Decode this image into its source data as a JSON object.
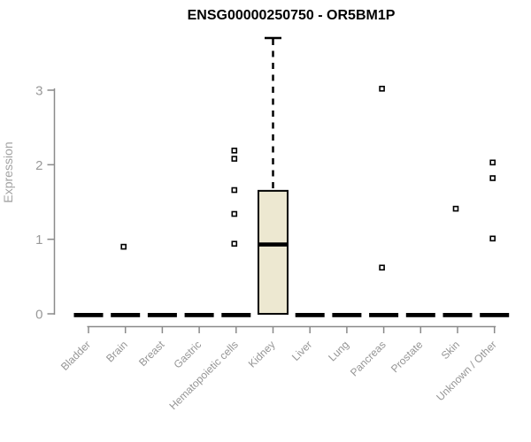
{
  "chart_data": {
    "type": "box",
    "title": "ENSG00000250750 - OR5BM1P",
    "ylabel": "Expression",
    "xlabel": "",
    "yticks": [
      0,
      1,
      2,
      3
    ],
    "ylim": [
      0,
      3.85
    ],
    "grid": false,
    "legend": "none",
    "categories": [
      "Bladder",
      "Brain",
      "Breast",
      "Gastric",
      "Hematopoietic cells",
      "Kidney",
      "Liver",
      "Lung",
      "Pancreas",
      "Prostate",
      "Skin",
      "Unknown / Other"
    ],
    "boxes": [
      {
        "category": "Bladder",
        "whisker_low": 0,
        "q1": 0,
        "median": 0,
        "q3": 0,
        "whisker_high": 0,
        "outliers": []
      },
      {
        "category": "Brain",
        "whisker_low": 0,
        "q1": 0,
        "median": 0,
        "q3": 0,
        "whisker_high": 0,
        "outliers": [
          0.9
        ]
      },
      {
        "category": "Breast",
        "whisker_low": 0,
        "q1": 0,
        "median": 0,
        "q3": 0,
        "whisker_high": 0,
        "outliers": []
      },
      {
        "category": "Gastric",
        "whisker_low": 0,
        "q1": 0,
        "median": 0,
        "q3": 0,
        "whisker_high": 0,
        "outliers": []
      },
      {
        "category": "Hematopoietic cells",
        "whisker_low": 0,
        "q1": 0,
        "median": 0,
        "q3": 0,
        "whisker_high": 0,
        "outliers": [
          0.94,
          1.34,
          1.66,
          2.08,
          2.19
        ]
      },
      {
        "category": "Kidney",
        "whisker_low": 0,
        "q1": 0,
        "median": 0.93,
        "q3": 1.65,
        "whisker_high": 3.7,
        "outliers": []
      },
      {
        "category": "Liver",
        "whisker_low": 0,
        "q1": 0,
        "median": 0,
        "q3": 0,
        "whisker_high": 0,
        "outliers": []
      },
      {
        "category": "Lung",
        "whisker_low": 0,
        "q1": 0,
        "median": 0,
        "q3": 0,
        "whisker_high": 0,
        "outliers": []
      },
      {
        "category": "Pancreas",
        "whisker_low": 0,
        "q1": 0,
        "median": 0,
        "q3": 0,
        "whisker_high": 0,
        "outliers": [
          0.62,
          3.02
        ]
      },
      {
        "category": "Prostate",
        "whisker_low": 0,
        "q1": 0,
        "median": 0,
        "q3": 0,
        "whisker_high": 0,
        "outliers": []
      },
      {
        "category": "Skin",
        "whisker_low": 0,
        "q1": 0,
        "median": 0,
        "q3": 0,
        "whisker_high": 0,
        "outliers": [
          1.41
        ]
      },
      {
        "category": "Unknown / Other",
        "whisker_low": 0,
        "q1": 0,
        "median": 0,
        "q3": 0,
        "whisker_high": 0,
        "outliers": [
          1.01,
          1.82,
          2.03
        ]
      }
    ],
    "colors": {
      "box_fill": "#ede8d1",
      "box_border": "#000000",
      "median": "#000000",
      "whisker": "#000000",
      "outlier": "#000000",
      "axis_line": "#8a8a8a",
      "tick_label": "#999999",
      "title": "#000000"
    }
  }
}
